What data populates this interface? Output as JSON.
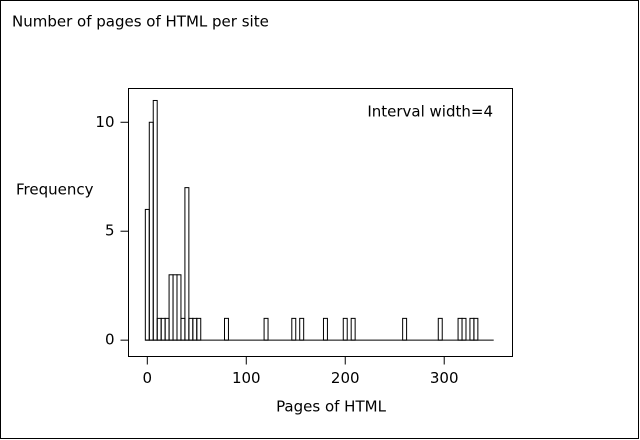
{
  "chart_data": {
    "type": "histogram",
    "title": "Number of pages of HTML per site",
    "annotation": "Interval width=4",
    "x_label": "Pages of HTML",
    "y_label": "Frequency",
    "bins": [
      -2,
      2,
      6,
      10,
      14,
      18,
      22,
      26,
      30,
      34,
      38,
      42,
      46,
      50,
      54,
      58,
      62,
      66,
      70,
      74,
      78,
      82,
      86,
      90,
      94,
      98,
      102,
      106,
      110,
      114,
      118,
      122,
      126,
      130,
      134,
      138,
      142,
      146,
      150,
      154,
      158,
      162,
      166,
      170,
      174,
      178,
      182,
      186,
      190,
      194,
      198,
      202,
      206,
      210,
      214,
      218,
      222,
      226,
      230,
      234,
      238,
      242,
      246,
      250,
      254,
      258,
      262,
      266,
      270,
      274,
      278,
      282,
      286,
      290,
      294,
      298,
      302,
      306,
      310,
      314,
      318,
      322,
      326,
      330,
      334,
      338,
      342,
      346,
      350
    ],
    "values": [
      6,
      10,
      11,
      1,
      1,
      1,
      3,
      3,
      3,
      1,
      7,
      1,
      1,
      1,
      0,
      0,
      0,
      0,
      0,
      0,
      1,
      0,
      0,
      0,
      0,
      0,
      0,
      0,
      0,
      0,
      1,
      0,
      0,
      0,
      0,
      0,
      0,
      1,
      0,
      1,
      0,
      0,
      0,
      0,
      0,
      1,
      0,
      0,
      0,
      0,
      1,
      0,
      1,
      0,
      0,
      0,
      0,
      0,
      0,
      0,
      0,
      0,
      0,
      0,
      0,
      1,
      0,
      0,
      0,
      0,
      0,
      0,
      0,
      0,
      1,
      0,
      0,
      0,
      0,
      1,
      1,
      0,
      1,
      1,
      0,
      0,
      0,
      0
    ],
    "color": "#000000",
    "xlim": [
      -19,
      369
    ],
    "ylim": [
      -0.75,
      11.55
    ],
    "xticks": [
      0,
      100,
      200,
      300
    ],
    "yticks": [
      0,
      5,
      10
    ]
  }
}
